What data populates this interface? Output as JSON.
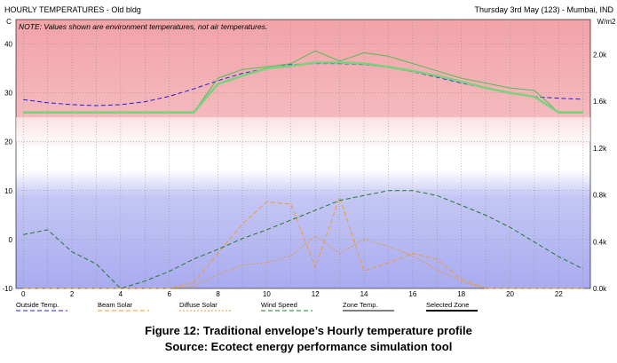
{
  "chart_data": {
    "type": "line",
    "title": "HOURLY TEMPERATURES - Old bldg",
    "date_info": "Thursday 3rd May (123) - Mumbai, IND",
    "note": "NOTE: Values shown are environment temperatures, not air temperatures.",
    "left_axis_unit": "C",
    "right_axis_unit": "W/m2",
    "xlim": [
      -0.3,
      23.3
    ],
    "ylim": [
      -10,
      45
    ],
    "y2lim": [
      0,
      2.3
    ],
    "x_ticks": [
      0,
      2,
      4,
      6,
      8,
      10,
      12,
      14,
      16,
      18,
      20,
      22
    ],
    "y_ticks": [
      -10,
      0,
      10,
      20,
      30,
      40
    ],
    "y2_ticks": [
      "0.0k",
      "0.4k",
      "0.8k",
      "1.2k",
      "1.6k",
      "2.0k"
    ],
    "y2_tick_values": [
      0,
      0.4,
      0.8,
      1.2,
      1.6,
      2.0
    ],
    "comfort_band": [
      20,
      25
    ],
    "x": [
      0,
      1,
      2,
      3,
      4,
      5,
      6,
      7,
      8,
      9,
      10,
      11,
      12,
      13,
      14,
      15,
      16,
      17,
      18,
      19,
      20,
      21,
      22,
      23
    ],
    "series": [
      {
        "name": "Outside Temp.",
        "axis": "left",
        "color": "#1f1fd6",
        "style": "dash",
        "values": [
          28.6,
          28.0,
          27.6,
          27.4,
          27.6,
          28.2,
          29.3,
          30.8,
          32.5,
          34.0,
          35.0,
          35.8,
          36.0,
          36.0,
          35.8,
          35.2,
          34.3,
          33.2,
          32.0,
          31.0,
          30.0,
          29.2,
          28.9,
          28.7
        ]
      },
      {
        "name": "Beam Solar",
        "axis": "right",
        "color": "#f29a2e",
        "style": "dash",
        "values": [
          0,
          0,
          0,
          0,
          0,
          0,
          0,
          0.05,
          0.3,
          0.55,
          0.74,
          0.72,
          0.18,
          0.78,
          0.15,
          0.22,
          0.3,
          0.25,
          0.08,
          0,
          0,
          0,
          0,
          0
        ]
      },
      {
        "name": "Diffuse Solar",
        "axis": "right",
        "color": "#e69a3a",
        "style": "dot",
        "values": [
          0,
          0,
          0,
          0,
          0,
          0,
          0,
          0.02,
          0.12,
          0.2,
          0.22,
          0.28,
          0.45,
          0.3,
          0.42,
          0.36,
          0.28,
          0.16,
          0.06,
          0,
          0,
          0,
          0,
          0
        ]
      },
      {
        "name": "Wind Speed",
        "axis": "left",
        "color": "#1f7a2a",
        "style": "dash",
        "values": [
          1,
          2,
          -2.5,
          -5,
          -10,
          -8.5,
          -6.5,
          -4,
          -2,
          0.2,
          2,
          4,
          6,
          8,
          9,
          10,
          10,
          9,
          7,
          5,
          2.5,
          -0.5,
          -3.5,
          -6
        ]
      },
      {
        "name": "Zone Temp.",
        "axis": "left",
        "color": "#55bb55",
        "style": "solid",
        "values": [
          26,
          26,
          26,
          26,
          26,
          26,
          26,
          26,
          33,
          34.8,
          35.3,
          36.0,
          38.6,
          36.5,
          38.2,
          37.5,
          36.0,
          34.5,
          33.0,
          32.0,
          31.0,
          30.5,
          26,
          26
        ]
      },
      {
        "name": "Selected Zone",
        "axis": "left",
        "color": "#7ed07e",
        "style": "solid-thick",
        "values": [
          26,
          26,
          26,
          26,
          26,
          26,
          26,
          26,
          31.8,
          33.5,
          35.0,
          35.5,
          36.2,
          36.2,
          36.0,
          35.3,
          34.5,
          33.5,
          32.3,
          31.0,
          30.0,
          29.2,
          26,
          26
        ]
      }
    ]
  },
  "caption": {
    "line1": "Figure 12: Traditional envelope’s Hourly temperature profile",
    "line2": "Source: Ecotect energy performance simulation tool"
  }
}
